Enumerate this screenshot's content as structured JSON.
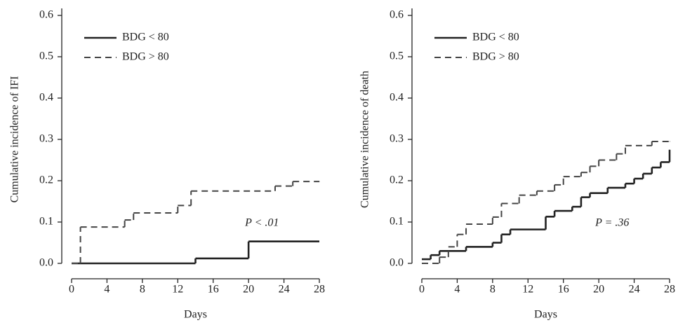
{
  "chart_data": [
    {
      "type": "step",
      "ylabel": "Cumulative incidence of IFI",
      "xlabel": "Days",
      "xlim": [
        0,
        28
      ],
      "xticks": [
        0,
        4,
        8,
        12,
        16,
        20,
        24,
        28
      ],
      "ylim": [
        0,
        0.6
      ],
      "yticks": [
        {
          "value": 0,
          "label": "0.0"
        },
        0.1,
        0.2,
        0.3,
        0.4,
        0.5,
        0.6
      ],
      "annotation": "P < .01",
      "series": [
        {
          "name": "BDG < 80",
          "color": "#222222",
          "style": "solid",
          "x": [
            0,
            14,
            20,
            28
          ],
          "values": [
            0,
            0.012,
            0.053,
            0.053
          ]
        },
        {
          "name": "BDG > 80",
          "color": "#444444",
          "style": "dashed",
          "x": [
            0,
            1,
            6,
            7,
            12,
            13.5,
            23,
            25,
            28
          ],
          "values": [
            0,
            0.088,
            0.105,
            0.122,
            0.14,
            0.175,
            0.187,
            0.198,
            0.198
          ]
        }
      ]
    },
    {
      "type": "step",
      "ylabel": "Cumulative incidence of death",
      "xlabel": "Days",
      "xlim": [
        0,
        28
      ],
      "xticks": [
        0,
        4,
        8,
        12,
        16,
        20,
        24,
        28
      ],
      "ylim": [
        0,
        0.6
      ],
      "yticks": [
        {
          "value": 0,
          "label": "0.0"
        },
        0.1,
        0.2,
        0.3,
        0.4,
        0.5,
        0.6
      ],
      "annotation": "P = .36",
      "series": [
        {
          "name": "BDG < 80",
          "color": "#222222",
          "style": "solid",
          "x": [
            0,
            1,
            2,
            5,
            8,
            9,
            10,
            14,
            15,
            17,
            18,
            19,
            21,
            23,
            24,
            25,
            26,
            27,
            28
          ],
          "values": [
            0.01,
            0.02,
            0.03,
            0.04,
            0.05,
            0.07,
            0.082,
            0.113,
            0.127,
            0.137,
            0.16,
            0.17,
            0.183,
            0.193,
            0.205,
            0.217,
            0.232,
            0.245,
            0.275
          ]
        },
        {
          "name": "BDG > 80",
          "color": "#444444",
          "style": "dashed",
          "x": [
            0,
            2,
            3,
            4,
            5,
            8,
            9,
            11,
            13,
            15,
            16,
            18,
            19,
            20,
            22,
            23,
            26,
            28
          ],
          "values": [
            0,
            0.015,
            0.04,
            0.07,
            0.095,
            0.112,
            0.145,
            0.165,
            0.175,
            0.19,
            0.21,
            0.22,
            0.235,
            0.25,
            0.265,
            0.285,
            0.295,
            0.295
          ]
        }
      ]
    }
  ]
}
